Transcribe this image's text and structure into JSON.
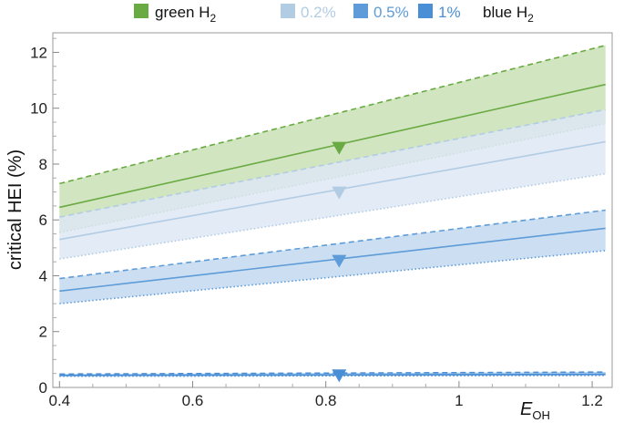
{
  "chart_data": {
    "type": "area",
    "ylabel": "critical HEI (%)",
    "xlabel_main": "E",
    "xlabel_sub": "OH",
    "xlim": [
      0.39,
      1.23
    ],
    "ylim": [
      0,
      12.7
    ],
    "xticks": [
      0.4,
      0.6,
      0.8,
      1,
      1.2
    ],
    "xtick_labels": [
      "0.4",
      "0.6",
      "0.8",
      "1",
      "1.2"
    ],
    "yticks": [
      0,
      2,
      4,
      6,
      8,
      10,
      12
    ],
    "ytick_labels": [
      "0",
      "2",
      "4",
      "6",
      "8",
      "10",
      "12"
    ],
    "legend_placement": "top",
    "legend": {
      "green_label_main": "green H",
      "green_label_sub": "2",
      "pct_02": "0.2%",
      "pct_05": "0.5%",
      "pct_1": "1%",
      "blue_label_main": "blue H",
      "blue_label_sub": "2"
    },
    "colors": {
      "green_line": "#6aaa42",
      "green_fill": "#c9e0b6",
      "b02_line": "#b2cce4",
      "b02_fill": "#dde8f4",
      "b05_line": "#5d9cd8",
      "b05_fill": "#c3d8ef",
      "b1_line": "#4a8fd6",
      "b1_fill": "#9ec2e8",
      "marker_green": "#6aaa42",
      "marker_b02": "#b2cce4",
      "marker_b05": "#5d9cd8",
      "marker_b1": "#4a8fd6"
    },
    "marker_x": 0.82,
    "series": [
      {
        "name": "green H2",
        "key": "green",
        "x": [
          0.4,
          1.22
        ],
        "central": [
          6.45,
          10.85
        ],
        "upper": [
          7.3,
          12.25
        ],
        "lower": [
          5.55,
          9.45
        ],
        "marker_y": 8.6
      },
      {
        "name": "0.2%",
        "key": "b02",
        "x": [
          0.4,
          1.22
        ],
        "central": [
          5.3,
          8.8
        ],
        "upper": [
          6.1,
          9.95
        ],
        "lower": [
          4.6,
          7.65
        ],
        "marker_y": 7.0
      },
      {
        "name": "0.5%",
        "key": "b05",
        "x": [
          0.4,
          1.22
        ],
        "central": [
          3.45,
          5.7
        ],
        "upper": [
          3.9,
          6.35
        ],
        "lower": [
          3.0,
          4.9
        ],
        "marker_y": 4.55
      },
      {
        "name": "1%",
        "key": "b1",
        "x": [
          0.4,
          1.22
        ],
        "central": [
          0.43,
          0.47
        ],
        "upper": [
          0.48,
          0.55
        ],
        "lower": [
          0.4,
          0.43
        ],
        "marker_y": 0.45
      }
    ]
  }
}
